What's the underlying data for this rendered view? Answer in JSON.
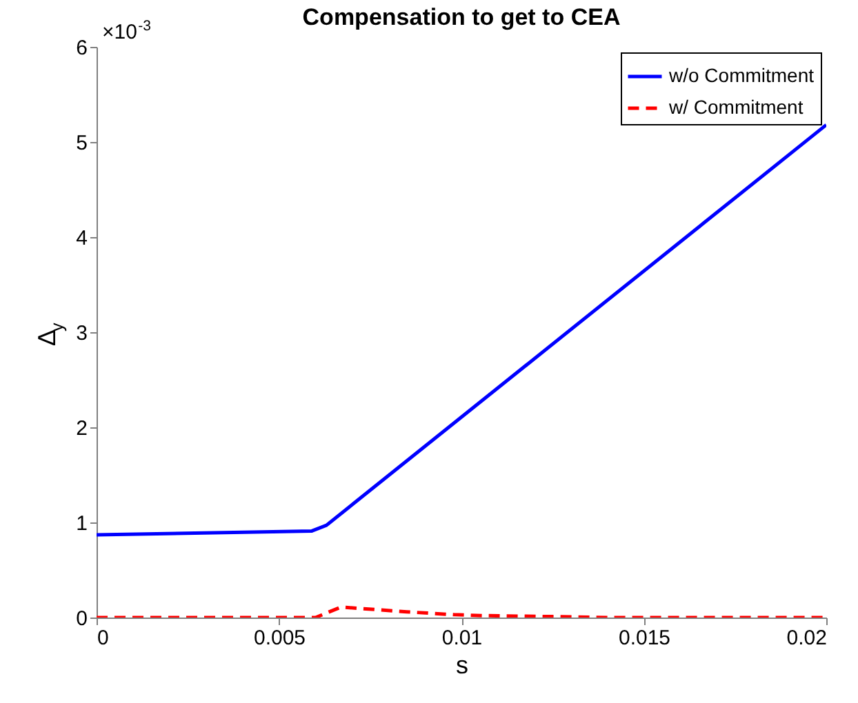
{
  "chart_data": {
    "type": "line",
    "title": "Compensation to get to CEA",
    "xlabel": "s",
    "ylabel": "Δ$_{y}$",
    "annotations": [
      "×10$^{-3}$"
    ],
    "xlim": [
      0,
      0.02
    ],
    "xticks": [
      0,
      0.005,
      0.01,
      0.015,
      0.02
    ],
    "ylim": [
      0,
      6
    ],
    "yticks": [
      0,
      1,
      2,
      3,
      4,
      5,
      6
    ],
    "grid": false,
    "legend": "top right",
    "series": [
      {
        "name": "w/o Commitment",
        "color": "#0000ff",
        "line_style": "solid",
        "x": [
          0,
          0.0059,
          0.0063,
          0.02
        ],
        "values": [
          0.87,
          0.91,
          0.97,
          5.18
        ]
      },
      {
        "name": "w/ Commitment",
        "color": "#ff0000",
        "line_style": "dashed",
        "x": [
          0,
          0.006,
          0.0067,
          0.0085,
          0.0098,
          0.0106,
          0.0125,
          0.014,
          0.02
        ],
        "values": [
          0,
          0,
          0.11,
          0.06,
          0.03,
          0.02,
          0.01,
          0,
          0
        ]
      }
    ]
  }
}
